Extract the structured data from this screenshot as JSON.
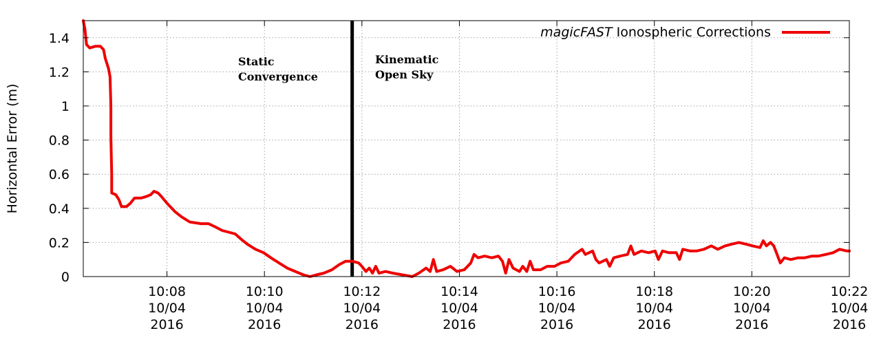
{
  "chart_data": {
    "type": "line",
    "title": "",
    "xlabel": "",
    "ylabel": "Horizontal Error (m)",
    "xlim": [
      "10:06:17",
      "10:22:00"
    ],
    "ylim": [
      0,
      1.5
    ],
    "grid": true,
    "legend": "top-right",
    "x_ticks": [
      {
        "time": "10:08",
        "lines": [
          "10:08",
          "10/04",
          "2016"
        ]
      },
      {
        "time": "10:10",
        "lines": [
          "10:10",
          "10/04",
          "2016"
        ]
      },
      {
        "time": "10:12",
        "lines": [
          "10:12",
          "10/04",
          "2016"
        ]
      },
      {
        "time": "10:14",
        "lines": [
          "10:14",
          "10/04",
          "2016"
        ]
      },
      {
        "time": "10:16",
        "lines": [
          "10:16",
          "10/04",
          "2016"
        ]
      },
      {
        "time": "10:18",
        "lines": [
          "10:18",
          "10/04",
          "2016"
        ]
      },
      {
        "time": "10:20",
        "lines": [
          "10:20",
          "10/04",
          "2016"
        ]
      },
      {
        "time": "10:22",
        "lines": [
          "10:22",
          "10/04",
          "2016"
        ]
      }
    ],
    "y_ticks": [
      "0",
      "0.2",
      "0.4",
      "0.6",
      "0.8",
      "1",
      "1.2",
      "1.4"
    ],
    "y_tick_values": [
      0,
      0.2,
      0.4,
      0.6,
      0.8,
      1.0,
      1.2,
      1.4
    ],
    "vertical_marker": {
      "time": "10:11:48"
    },
    "annotations": [
      {
        "lines": [
          "Static",
          "Convergence"
        ]
      },
      {
        "lines": [
          "Kinematic",
          "Open Sky"
        ]
      }
    ],
    "series": [
      {
        "name_italic": "magicFAST",
        "name_rest": " Ionospheric Corrections",
        "color": "#ee0000",
        "points": [
          [
            "10:06:17",
            1.5
          ],
          [
            "10:06:19",
            1.45
          ],
          [
            "10:06:21",
            1.36
          ],
          [
            "10:06:25",
            1.34
          ],
          [
            "10:06:32",
            1.35
          ],
          [
            "10:06:38",
            1.35
          ],
          [
            "10:06:42",
            1.33
          ],
          [
            "10:06:44",
            1.28
          ],
          [
            "10:06:48",
            1.22
          ],
          [
            "10:06:50",
            1.17
          ],
          [
            "10:06:51",
            1.0
          ],
          [
            "10:06:51",
            0.82
          ],
          [
            "10:06:52",
            0.6
          ],
          [
            "10:06:52",
            0.49
          ],
          [
            "10:06:57",
            0.48
          ],
          [
            "10:07:01",
            0.45
          ],
          [
            "10:07:04",
            0.41
          ],
          [
            "10:07:10",
            0.41
          ],
          [
            "10:07:15",
            0.43
          ],
          [
            "10:07:20",
            0.46
          ],
          [
            "10:07:28",
            0.46
          ],
          [
            "10:07:35",
            0.47
          ],
          [
            "10:07:40",
            0.48
          ],
          [
            "10:07:44",
            0.5
          ],
          [
            "10:07:49",
            0.49
          ],
          [
            "10:07:53",
            0.47
          ],
          [
            "10:08:00",
            0.43
          ],
          [
            "10:08:10",
            0.38
          ],
          [
            "10:08:18",
            0.35
          ],
          [
            "10:08:28",
            0.32
          ],
          [
            "10:08:42",
            0.31
          ],
          [
            "10:08:51",
            0.31
          ],
          [
            "10:09:00",
            0.29
          ],
          [
            "10:09:08",
            0.27
          ],
          [
            "10:09:16",
            0.26
          ],
          [
            "10:09:24",
            0.25
          ],
          [
            "10:09:31",
            0.22
          ],
          [
            "10:09:39",
            0.19
          ],
          [
            "10:09:49",
            0.16
          ],
          [
            "10:09:59",
            0.14
          ],
          [
            "10:10:08",
            0.11
          ],
          [
            "10:10:18",
            0.08
          ],
          [
            "10:10:28",
            0.05
          ],
          [
            "10:10:38",
            0.03
          ],
          [
            "10:10:48",
            0.01
          ],
          [
            "10:10:56",
            0.0
          ],
          [
            "10:11:04",
            0.01
          ],
          [
            "10:11:13",
            0.02
          ],
          [
            "10:11:23",
            0.04
          ],
          [
            "10:11:32",
            0.07
          ],
          [
            "10:11:40",
            0.09
          ],
          [
            "10:11:48",
            0.09
          ],
          [
            "10:11:56",
            0.08
          ],
          [
            "10:12:00",
            0.06
          ],
          [
            "10:12:05",
            0.03
          ],
          [
            "10:12:09",
            0.05
          ],
          [
            "10:12:13",
            0.02
          ],
          [
            "10:12:17",
            0.06
          ],
          [
            "10:12:21",
            0.02
          ],
          [
            "10:12:29",
            0.03
          ],
          [
            "10:12:38",
            0.02
          ],
          [
            "10:12:50",
            0.01
          ],
          [
            "10:13:02",
            0.0
          ],
          [
            "10:13:10",
            0.02
          ],
          [
            "10:13:19",
            0.05
          ],
          [
            "10:13:24",
            0.03
          ],
          [
            "10:13:28",
            0.1
          ],
          [
            "10:13:32",
            0.03
          ],
          [
            "10:13:40",
            0.04
          ],
          [
            "10:13:49",
            0.06
          ],
          [
            "10:13:57",
            0.03
          ],
          [
            "10:14:06",
            0.04
          ],
          [
            "10:14:14",
            0.08
          ],
          [
            "10:14:18",
            0.13
          ],
          [
            "10:14:23",
            0.11
          ],
          [
            "10:14:31",
            0.12
          ],
          [
            "10:14:40",
            0.11
          ],
          [
            "10:14:48",
            0.12
          ],
          [
            "10:14:53",
            0.09
          ],
          [
            "10:14:57",
            0.02
          ],
          [
            "10:15:01",
            0.1
          ],
          [
            "10:15:06",
            0.05
          ],
          [
            "10:15:10",
            0.04
          ],
          [
            "10:15:14",
            0.03
          ],
          [
            "10:15:18",
            0.06
          ],
          [
            "10:15:23",
            0.03
          ],
          [
            "10:15:27",
            0.09
          ],
          [
            "10:15:31",
            0.04
          ],
          [
            "10:15:40",
            0.04
          ],
          [
            "10:15:48",
            0.06
          ],
          [
            "10:15:57",
            0.06
          ],
          [
            "10:16:05",
            0.08
          ],
          [
            "10:16:14",
            0.09
          ],
          [
            "10:16:22",
            0.13
          ],
          [
            "10:16:31",
            0.16
          ],
          [
            "10:16:35",
            0.13
          ],
          [
            "10:16:44",
            0.15
          ],
          [
            "10:16:48",
            0.1
          ],
          [
            "10:16:52",
            0.08
          ],
          [
            "10:17:01",
            0.1
          ],
          [
            "10:17:05",
            0.06
          ],
          [
            "10:17:10",
            0.11
          ],
          [
            "10:17:18",
            0.12
          ],
          [
            "10:17:27",
            0.13
          ],
          [
            "10:17:31",
            0.18
          ],
          [
            "10:17:35",
            0.13
          ],
          [
            "10:17:44",
            0.15
          ],
          [
            "10:17:53",
            0.14
          ],
          [
            "10:18:01",
            0.15
          ],
          [
            "10:18:05",
            0.1
          ],
          [
            "10:18:10",
            0.15
          ],
          [
            "10:18:18",
            0.14
          ],
          [
            "10:18:27",
            0.14
          ],
          [
            "10:18:31",
            0.1
          ],
          [
            "10:18:35",
            0.16
          ],
          [
            "10:18:44",
            0.15
          ],
          [
            "10:18:52",
            0.15
          ],
          [
            "10:19:01",
            0.16
          ],
          [
            "10:19:10",
            0.18
          ],
          [
            "10:19:18",
            0.16
          ],
          [
            "10:19:27",
            0.18
          ],
          [
            "10:19:35",
            0.19
          ],
          [
            "10:19:44",
            0.2
          ],
          [
            "10:19:53",
            0.19
          ],
          [
            "10:20:01",
            0.18
          ],
          [
            "10:20:10",
            0.17
          ],
          [
            "10:20:14",
            0.21
          ],
          [
            "10:20:18",
            0.18
          ],
          [
            "10:20:23",
            0.2
          ],
          [
            "10:20:27",
            0.18
          ],
          [
            "10:20:31",
            0.13
          ],
          [
            "10:20:35",
            0.08
          ],
          [
            "10:20:40",
            0.11
          ],
          [
            "10:20:48",
            0.1
          ],
          [
            "10:20:57",
            0.11
          ],
          [
            "10:21:05",
            0.11
          ],
          [
            "10:21:14",
            0.12
          ],
          [
            "10:21:22",
            0.12
          ],
          [
            "10:21:31",
            0.13
          ],
          [
            "10:21:40",
            0.14
          ],
          [
            "10:21:48",
            0.16
          ],
          [
            "10:21:57",
            0.15
          ],
          [
            "10:22:00",
            0.15
          ]
        ]
      }
    ]
  }
}
